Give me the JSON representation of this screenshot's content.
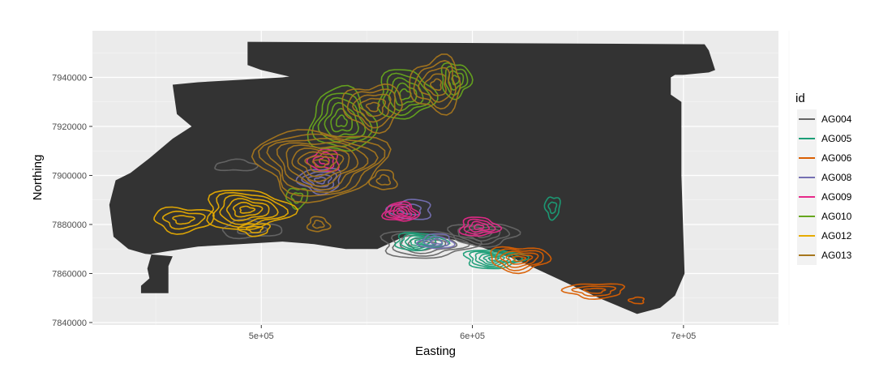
{
  "chart_data": {
    "type": "contour-map",
    "xlabel": "Easting",
    "ylabel": "Northing",
    "xlim": [
      420000,
      745000
    ],
    "ylim": [
      7839000,
      7959000
    ],
    "x_ticks": [
      500000,
      600000,
      700000
    ],
    "x_tick_labels": [
      "5e+05",
      "6e+05",
      "7e+05"
    ],
    "y_ticks": [
      7840000,
      7860000,
      7880000,
      7900000,
      7920000,
      7940000
    ],
    "y_tick_labels": [
      "7840000",
      "7860000",
      "7880000",
      "7900000",
      "7920000",
      "7940000"
    ],
    "grid": true,
    "legend": {
      "title": "id",
      "position": "right"
    },
    "study_area_polygon": [
      [
        493500,
        7954500
      ],
      [
        710000,
        7953500
      ],
      [
        712000,
        7951000
      ],
      [
        715000,
        7943000
      ],
      [
        712000,
        7942000
      ],
      [
        700000,
        7941000
      ],
      [
        696000,
        7941000
      ],
      [
        694000,
        7940000
      ],
      [
        694000,
        7933000
      ],
      [
        699000,
        7930000
      ],
      [
        699000,
        7900000
      ],
      [
        700500,
        7860000
      ],
      [
        696000,
        7851000
      ],
      [
        689000,
        7846000
      ],
      [
        678000,
        7843500
      ],
      [
        660000,
        7850000
      ],
      [
        640000,
        7858000
      ],
      [
        630000,
        7862000
      ],
      [
        620000,
        7866000
      ],
      [
        600000,
        7872000
      ],
      [
        585000,
        7875000
      ],
      [
        570000,
        7876000
      ],
      [
        555000,
        7870000
      ],
      [
        540000,
        7870000
      ],
      [
        525000,
        7872000
      ],
      [
        510000,
        7873000
      ],
      [
        490000,
        7872000
      ],
      [
        470000,
        7871000
      ],
      [
        455000,
        7869000
      ],
      [
        448000,
        7868000
      ],
      [
        446000,
        7862000
      ],
      [
        447000,
        7858000
      ],
      [
        443000,
        7855000
      ],
      [
        443000,
        7852000
      ],
      [
        456000,
        7852000
      ],
      [
        456000,
        7863000
      ],
      [
        458000,
        7867000
      ],
      [
        445000,
        7868000
      ],
      [
        437000,
        7870000
      ],
      [
        430000,
        7875000
      ],
      [
        428000,
        7888000
      ],
      [
        431000,
        7898000
      ],
      [
        438000,
        7901000
      ],
      [
        447000,
        7907000
      ],
      [
        458000,
        7915000
      ],
      [
        467000,
        7920000
      ],
      [
        460000,
        7925000
      ],
      [
        458000,
        7937000
      ],
      [
        470000,
        7938000
      ],
      [
        510000,
        7940000
      ],
      [
        530000,
        7942000
      ],
      [
        548000,
        7938000
      ],
      [
        560000,
        7935000
      ],
      [
        575000,
        7932000
      ],
      [
        585000,
        7930000
      ],
      [
        590000,
        7928000
      ],
      [
        575000,
        7925000
      ],
      [
        560000,
        7924000
      ],
      [
        545000,
        7925000
      ],
      [
        530000,
        7935000
      ],
      [
        515000,
        7940000
      ],
      [
        500000,
        7943000
      ],
      [
        493500,
        7945000
      ]
    ],
    "series": [
      {
        "name": "AG004",
        "color": "#666666",
        "centers": [
          {
            "x": 488000,
            "y": 7904000,
            "levels": 1,
            "rx": 10000,
            "ry": 2200
          },
          {
            "x": 495000,
            "y": 7878000,
            "levels": 2,
            "rx": 14000,
            "ry": 3500
          },
          {
            "x": 578000,
            "y": 7872000,
            "levels": 5,
            "rx": 22000,
            "ry": 5500
          },
          {
            "x": 605000,
            "y": 7876000,
            "levels": 4,
            "rx": 16000,
            "ry": 4500
          }
        ]
      },
      {
        "name": "AG005",
        "color": "#1B9E77",
        "centers": [
          {
            "x": 575000,
            "y": 7873000,
            "levels": 5,
            "rx": 12000,
            "ry": 3500
          },
          {
            "x": 610000,
            "y": 7866000,
            "levels": 6,
            "rx": 14000,
            "ry": 3800
          },
          {
            "x": 638000,
            "y": 7887000,
            "levels": 2,
            "rx": 3500,
            "ry": 4500
          }
        ]
      },
      {
        "name": "AG006",
        "color": "#D95F02",
        "centers": [
          {
            "x": 622000,
            "y": 7866000,
            "levels": 5,
            "rx": 14000,
            "ry": 5000
          },
          {
            "x": 658000,
            "y": 7853000,
            "levels": 3,
            "rx": 14000,
            "ry": 3000
          },
          {
            "x": 678000,
            "y": 7849000,
            "levels": 1,
            "rx": 3500,
            "ry": 1300
          }
        ]
      },
      {
        "name": "AG008",
        "color": "#7570B3",
        "centers": [
          {
            "x": 528000,
            "y": 7898000,
            "levels": 4,
            "rx": 10000,
            "ry": 5000
          },
          {
            "x": 571000,
            "y": 7886000,
            "levels": 2,
            "rx": 10000,
            "ry": 4000
          },
          {
            "x": 583000,
            "y": 7873000,
            "levels": 3,
            "rx": 8000,
            "ry": 3000
          }
        ]
      },
      {
        "name": "AG009",
        "color": "#E7298A",
        "centers": [
          {
            "x": 530000,
            "y": 7906000,
            "levels": 3,
            "rx": 7000,
            "ry": 4500
          },
          {
            "x": 566000,
            "y": 7885000,
            "levels": 5,
            "rx": 8000,
            "ry": 3800
          },
          {
            "x": 603000,
            "y": 7879000,
            "levels": 4,
            "rx": 9000,
            "ry": 3800
          }
        ]
      },
      {
        "name": "AG010",
        "color": "#66A61E",
        "centers": [
          {
            "x": 538000,
            "y": 7922000,
            "levels": 6,
            "rx": 15000,
            "ry": 13000
          },
          {
            "x": 568000,
            "y": 7933000,
            "levels": 5,
            "rx": 13000,
            "ry": 10000
          },
          {
            "x": 592000,
            "y": 7939000,
            "levels": 4,
            "rx": 7000,
            "ry": 7000
          },
          {
            "x": 517000,
            "y": 7891000,
            "levels": 2,
            "rx": 5000,
            "ry": 4000
          }
        ]
      },
      {
        "name": "AG012",
        "color": "#E6AB02",
        "centers": [
          {
            "x": 493000,
            "y": 7886000,
            "levels": 6,
            "rx": 20000,
            "ry": 8000
          },
          {
            "x": 463000,
            "y": 7882000,
            "levels": 3,
            "rx": 14000,
            "ry": 5000
          },
          {
            "x": 497000,
            "y": 7878000,
            "levels": 2,
            "rx": 7000,
            "ry": 2500
          }
        ]
      },
      {
        "name": "AG013",
        "color": "#A6761D",
        "centers": [
          {
            "x": 528000,
            "y": 7905000,
            "levels": 9,
            "rx": 30000,
            "ry": 14000
          },
          {
            "x": 553000,
            "y": 7928000,
            "levels": 5,
            "rx": 14000,
            "ry": 9000
          },
          {
            "x": 583000,
            "y": 7937000,
            "levels": 5,
            "rx": 12000,
            "ry": 11000
          },
          {
            "x": 558000,
            "y": 7898000,
            "levels": 2,
            "rx": 6000,
            "ry": 4000
          },
          {
            "x": 527000,
            "y": 7880000,
            "levels": 2,
            "rx": 5000,
            "ry": 3000
          }
        ]
      }
    ]
  }
}
